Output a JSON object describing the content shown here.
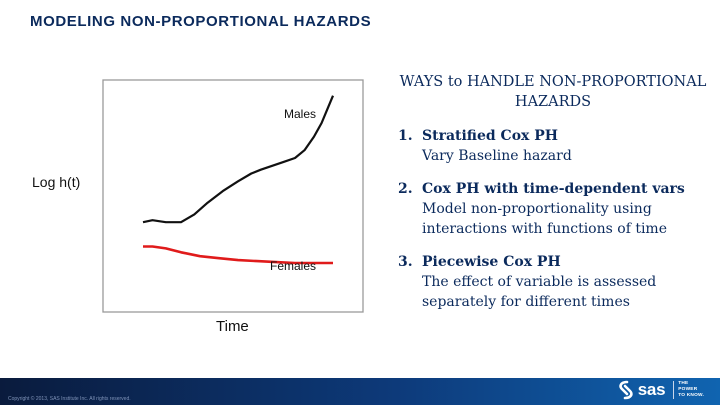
{
  "slide": {
    "title": "MODELING NON-PROPORTIONAL HAZARDS"
  },
  "chart_data": {
    "type": "line",
    "xlabel": "Time",
    "ylabel": "Log h(t)",
    "grid": false,
    "series": [
      {
        "name": "Males",
        "color": "#111111",
        "x": [
          0,
          0.05,
          0.12,
          0.2,
          0.27,
          0.34,
          0.42,
          0.5,
          0.57,
          0.62,
          0.68,
          0.74,
          0.8,
          0.85,
          0.9,
          0.94,
          0.97,
          1.0
        ],
        "y": [
          0.4,
          0.41,
          0.4,
          0.4,
          0.44,
          0.5,
          0.56,
          0.61,
          0.65,
          0.67,
          0.69,
          0.71,
          0.73,
          0.77,
          0.84,
          0.91,
          0.98,
          1.05
        ]
      },
      {
        "name": "Females",
        "color": "#e01b1b",
        "x": [
          0,
          0.05,
          0.12,
          0.2,
          0.3,
          0.4,
          0.5,
          0.6,
          0.7,
          0.8,
          0.9,
          1.0
        ],
        "y": [
          0.275,
          0.275,
          0.265,
          0.245,
          0.225,
          0.215,
          0.205,
          0.2,
          0.195,
          0.19,
          0.19,
          0.19
        ]
      }
    ]
  },
  "methods": {
    "heading": "WAYS to HANDLE NON-PROPORTIONAL HAZARDS",
    "items": [
      {
        "num": "1.",
        "title": "Stratified Cox PH",
        "desc": "Vary Baseline hazard"
      },
      {
        "num": "2.",
        "title": "Cox PH with time-dependent vars",
        "desc": "Model non-proportionality using interactions with functions of time"
      },
      {
        "num": "3.",
        "title": "Piecewise Cox PH",
        "desc": "The effect of variable is assessed separately for different times"
      }
    ]
  },
  "footer": {
    "copyright": "Copyright © 2013, SAS Institute Inc. All rights reserved.",
    "logo": "sas",
    "tagline": [
      "THE",
      "POWER",
      "TO KNOW."
    ],
    "icon": "sas-logo-icon"
  }
}
